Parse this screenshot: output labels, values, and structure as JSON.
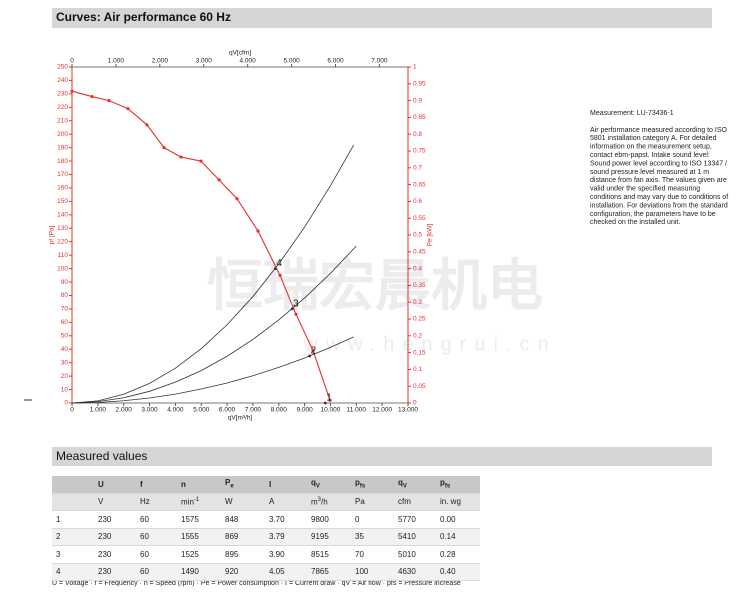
{
  "header": {
    "title": "Curves: Air performance 60 Hz"
  },
  "chart_data": {
    "type": "line",
    "watermark": {
      "text": "恒瑞宏晨机电",
      "url": "www.hengrui.cn"
    },
    "xlabel": "qV[m³/h]",
    "x2label": "qV[cfm]",
    "ylabel": "pf [Pa]",
    "y2label": "Pe [kW]",
    "xlim": [
      0,
      13000
    ],
    "xticks": [
      0,
      {
        "value": 1000,
        "label": "1.000"
      },
      {
        "value": 2000,
        "label": "2.000"
      },
      {
        "value": 3000,
        "label": "3.000"
      },
      {
        "value": 4000,
        "label": "4.000"
      },
      {
        "value": 5000,
        "label": "5.000"
      },
      {
        "value": 6000,
        "label": "6.000"
      },
      {
        "value": 7000,
        "label": "7.000"
      },
      {
        "value": 8000,
        "label": "8.000"
      },
      {
        "value": 9000,
        "label": "9.000"
      },
      {
        "value": 10000,
        "label": "10.000"
      },
      {
        "value": 11000,
        "label": "11.000"
      },
      {
        "value": 12000,
        "label": "12.000"
      },
      {
        "value": 13000,
        "label": "13.000"
      }
    ],
    "x2lim": [
      0,
      7651
    ],
    "x2ticks": [
      0,
      {
        "value": 1000,
        "label": "1.000"
      },
      {
        "value": 2000,
        "label": "2.000"
      },
      {
        "value": 3000,
        "label": "3.000"
      },
      {
        "value": 4000,
        "label": "4.000"
      },
      {
        "value": 5000,
        "label": "5.000"
      },
      {
        "value": 6000,
        "label": "6.000"
      },
      {
        "value": 7000,
        "label": "7.000"
      }
    ],
    "ylim": [
      0,
      250
    ],
    "yticks": [
      0,
      10,
      20,
      30,
      40,
      50,
      60,
      70,
      80,
      90,
      100,
      110,
      120,
      130,
      140,
      150,
      160,
      170,
      180,
      190,
      200,
      210,
      220,
      230,
      240,
      250
    ],
    "y2lim": [
      0,
      1
    ],
    "y2ticks": [
      0,
      0.05,
      0.1,
      0.15,
      0.2,
      0.25,
      0.3,
      0.35,
      0.4,
      0.45,
      0.5,
      0.55,
      0.6,
      0.65,
      0.7,
      0.75,
      0.8,
      0.85,
      0.9,
      0.95,
      1
    ],
    "axis_color": "#e8302a",
    "series": [
      {
        "color": "#e8302a",
        "markers": true,
        "x": [
          0,
          774,
          1431,
          2167,
          2900,
          3560,
          4217,
          4990,
          5690,
          6384,
          7196,
          8048,
          8667,
          9325,
          9983
        ],
        "values": [
          232,
          228,
          225,
          219,
          207,
          190,
          183,
          180,
          166,
          152,
          128,
          95,
          66,
          39,
          2
        ]
      },
      {
        "color": "#333333",
        "markers": false,
        "x": [
          0,
          1000,
          2000,
          3000,
          4000,
          5000,
          6000,
          7000,
          8000,
          9000,
          10000,
          10900
        ],
        "values": [
          0,
          1.6,
          6.5,
          14.6,
          25.9,
          40.4,
          58.2,
          79.2,
          103.5,
          130.9,
          161.7,
          192
        ]
      },
      {
        "color": "#333333",
        "markers": false,
        "x": [
          0,
          1000,
          2000,
          3000,
          4000,
          5000,
          6000,
          7000,
          8000,
          9000,
          10000,
          11000
        ],
        "values": [
          0,
          1,
          3.9,
          8.7,
          15.5,
          24.1,
          34.8,
          47.3,
          61.8,
          78.2,
          96.5,
          116.8
        ]
      },
      {
        "color": "#333333",
        "markers": false,
        "x": [
          0,
          1000,
          2000,
          3000,
          4000,
          5000,
          6000,
          7000,
          8000,
          9000,
          10000,
          10900
        ],
        "values": [
          0,
          0.4,
          1.7,
          3.7,
          6.6,
          10.4,
          14.9,
          20.3,
          26.5,
          33.5,
          41.4,
          49.2
        ]
      }
    ],
    "points": [
      {
        "label": "1",
        "x": 9800,
        "value": 0
      },
      {
        "label": "2",
        "x": 9195,
        "value": 35
      },
      {
        "label": "3",
        "x": 8515,
        "value": 70
      },
      {
        "label": "4",
        "x": 7865,
        "value": 100
      }
    ]
  },
  "notes": {
    "measurement": "Measurement: LU-73436-1",
    "lines": [
      "Air performance measured according to ISO",
      "5801 installation category A. For detailed",
      "information on the measurement setup,",
      "contact ebm-papst. Intake sound level:",
      "Sound power level according to ISO 13347 /",
      "sound pressure level measured at 1 m",
      "distance from fan axis. The values given are",
      "valid under the specified measuring",
      "conditions and may vary due to conditions of",
      "installation. For deviations from the standard",
      "configuration, the parameters have to be",
      "checked on the installed unit."
    ]
  },
  "table": {
    "title": "Measured values",
    "header": [
      {
        "main": "U"
      },
      {
        "main": "f"
      },
      {
        "main": "n"
      },
      {
        "main": "P",
        "sub": "e"
      },
      {
        "main": "I"
      },
      {
        "main": "q",
        "sub": "V"
      },
      {
        "main": "p",
        "sub": "fs"
      },
      {
        "main": "q",
        "sub": "V"
      },
      {
        "main": "p",
        "sub": "fs"
      }
    ],
    "units": [
      {
        "main": "V"
      },
      {
        "main": "Hz"
      },
      {
        "main": "min",
        "sup": "-1"
      },
      {
        "main": "W"
      },
      {
        "main": "A"
      },
      {
        "main": "m",
        "sup": "3",
        "tail": "/h"
      },
      {
        "main": "Pa"
      },
      {
        "main": "cfm"
      },
      {
        "main": "in. wg"
      }
    ],
    "rows": [
      [
        "1",
        "230",
        "60",
        "1575",
        "848",
        "3.70",
        "9800",
        "0",
        "5770",
        "0.00"
      ],
      [
        "2",
        "230",
        "60",
        "1555",
        "869",
        "3.79",
        "9195",
        "35",
        "5410",
        "0.14"
      ],
      [
        "3",
        "230",
        "60",
        "1525",
        "895",
        "3.90",
        "8515",
        "70",
        "5010",
        "0.28"
      ],
      [
        "4",
        "230",
        "60",
        "1490",
        "920",
        "4.05",
        "7865",
        "100",
        "4630",
        "0.40"
      ]
    ],
    "footnote": "U = Voltage · f = Frequency · n = Speed (rpm) · Pe = Power consumption · I = Current draw · qV = Air flow · pfs = Pressure increase"
  }
}
